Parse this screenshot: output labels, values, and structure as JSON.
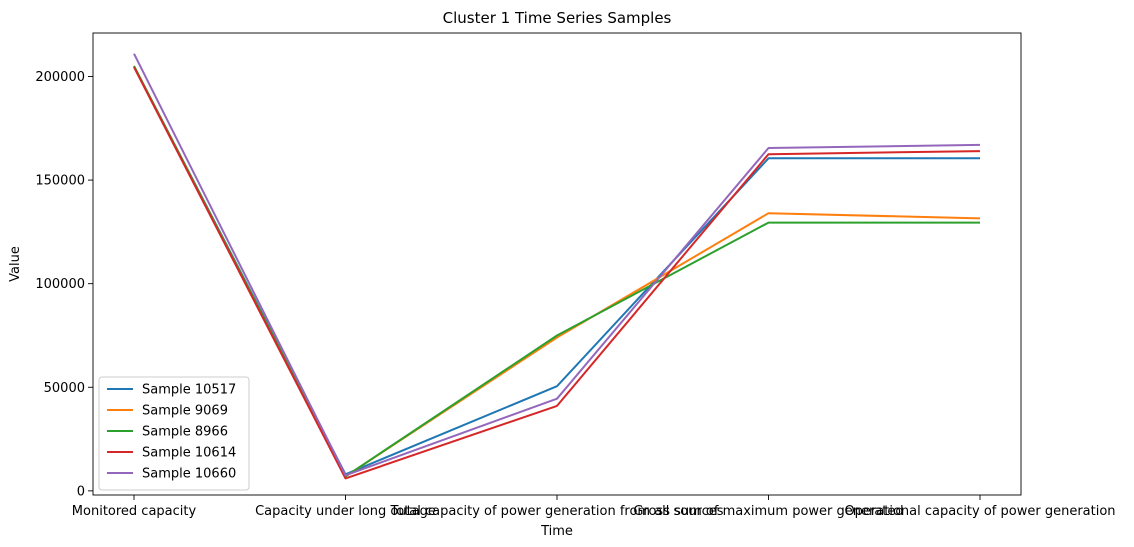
{
  "chart_data": {
    "type": "line",
    "title": "Cluster 1 Time Series Samples",
    "xlabel": "Time",
    "ylabel": "Value",
    "categories": [
      "Monitored capacity",
      "Capacity under long outage",
      "Total capacity of power generation from all sources",
      "Gross sum of maximum power generated",
      "Operational capacity of power generation"
    ],
    "ylim": [
      -2000,
      221000
    ],
    "yticks": [
      0,
      50000,
      100000,
      150000,
      200000
    ],
    "grid": false,
    "legend_position": "lower-left",
    "series": [
      {
        "name": "Sample 10517",
        "color": "#1f77b4",
        "values": [
          205000,
          8000,
          50500,
          160500,
          160500
        ]
      },
      {
        "name": "Sample 9069",
        "color": "#ff7f0e",
        "values": [
          205000,
          7000,
          74000,
          134000,
          131500
        ]
      },
      {
        "name": "Sample 8966",
        "color": "#2ca02c",
        "values": [
          205000,
          7000,
          75000,
          129500,
          129500
        ]
      },
      {
        "name": "Sample 10614",
        "color": "#d62728",
        "values": [
          204500,
          6000,
          41000,
          162500,
          164000
        ]
      },
      {
        "name": "Sample 10660",
        "color": "#9467bd",
        "values": [
          211000,
          7500,
          44500,
          165500,
          167000
        ]
      }
    ]
  }
}
